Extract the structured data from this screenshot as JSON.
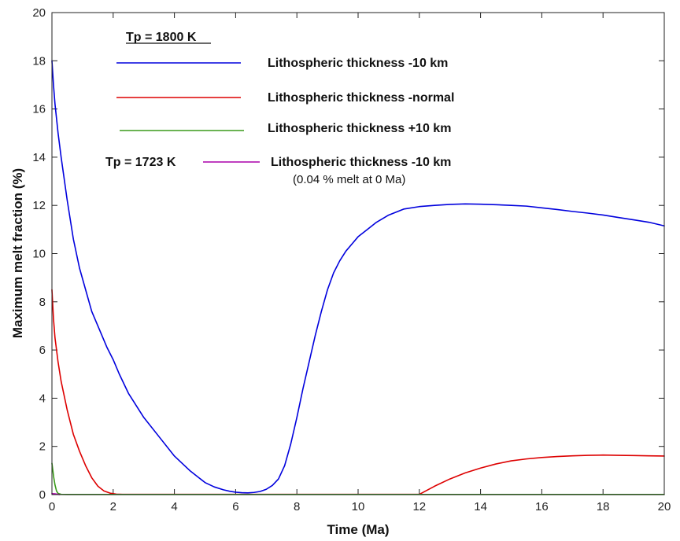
{
  "chart_data": {
    "type": "line",
    "xlabel": "Time (Ma)",
    "ylabel": "Maximum melt fraction (%)",
    "xlim": [
      0,
      20
    ],
    "ylim": [
      0,
      20
    ],
    "xticks": [
      "0",
      "2",
      "4",
      "6",
      "8",
      "10",
      "12",
      "14",
      "16",
      "18",
      "20"
    ],
    "yticks": [
      "0",
      "2",
      "4",
      "6",
      "8",
      "10",
      "12",
      "14",
      "16",
      "18",
      "20"
    ],
    "grid": false,
    "legend_placement": "top-left",
    "legend_group_titles": {
      "tp1800": "Tp = 1800 K",
      "tp1723": "Tp = 1723 K"
    },
    "legend_note": "(0.04 % melt at 0 Ma)",
    "series": [
      {
        "name": "Lithospheric thickness -10 km",
        "color": "#0000dd",
        "x": [
          0,
          0.05,
          0.1,
          0.2,
          0.3,
          0.5,
          0.7,
          0.9,
          1.1,
          1.3,
          1.5,
          1.8,
          2.0,
          2.2,
          2.5,
          2.8,
          3.0,
          3.5,
          4.0,
          4.5,
          5.0,
          5.3,
          5.6,
          5.8,
          6.0,
          6.2,
          6.4,
          6.6,
          6.8,
          7.0,
          7.2,
          7.4,
          7.6,
          7.8,
          8.0,
          8.2,
          8.4,
          8.6,
          8.8,
          9.0,
          9.2,
          9.4,
          9.6,
          9.8,
          10.0,
          10.3,
          10.6,
          11.0,
          11.5,
          12.0,
          12.5,
          13.0,
          13.5,
          14.0,
          14.5,
          15.0,
          15.5,
          16.0,
          16.5,
          17.0,
          17.5,
          18.0,
          18.5,
          19.0,
          19.5,
          20.0
        ],
        "y": [
          18.0,
          17.0,
          16.2,
          15.0,
          14.0,
          12.2,
          10.6,
          9.4,
          8.5,
          7.6,
          7.0,
          6.1,
          5.6,
          5.0,
          4.2,
          3.6,
          3.2,
          2.4,
          1.6,
          1.0,
          0.5,
          0.32,
          0.2,
          0.14,
          0.1,
          0.08,
          0.07,
          0.09,
          0.13,
          0.22,
          0.38,
          0.65,
          1.2,
          2.1,
          3.2,
          4.4,
          5.5,
          6.6,
          7.6,
          8.5,
          9.2,
          9.7,
          10.1,
          10.4,
          10.7,
          11.0,
          11.3,
          11.6,
          11.85,
          11.95,
          12.0,
          12.04,
          12.06,
          12.05,
          12.03,
          12.0,
          11.97,
          11.9,
          11.83,
          11.75,
          11.68,
          11.6,
          11.5,
          11.4,
          11.3,
          11.15
        ]
      },
      {
        "name": "Lithospheric thickness -normal",
        "color": "#dd0000",
        "x": [
          0,
          0.05,
          0.1,
          0.2,
          0.3,
          0.5,
          0.7,
          0.9,
          1.1,
          1.3,
          1.5,
          1.7,
          1.9,
          2.1,
          2.3,
          3,
          4,
          6,
          8,
          10,
          11,
          12,
          12.5,
          13,
          13.5,
          14,
          14.5,
          15,
          15.5,
          16,
          16.5,
          17,
          17.5,
          18,
          18.5,
          19,
          19.5,
          20
        ],
        "y": [
          8.5,
          7.3,
          6.5,
          5.5,
          4.7,
          3.5,
          2.5,
          1.8,
          1.2,
          0.7,
          0.35,
          0.15,
          0.06,
          0.02,
          0.01,
          0.01,
          0.01,
          0.01,
          0.01,
          0.01,
          0.01,
          0.01,
          0.35,
          0.65,
          0.9,
          1.1,
          1.27,
          1.4,
          1.48,
          1.54,
          1.58,
          1.61,
          1.63,
          1.64,
          1.63,
          1.62,
          1.61,
          1.6
        ]
      },
      {
        "name": "Lithospheric thickness +10 km",
        "color": "#3a9a1a",
        "x": [
          0,
          0.03,
          0.06,
          0.1,
          0.15,
          0.2,
          0.3,
          0.5,
          1,
          5,
          10,
          15,
          20
        ],
        "y": [
          1.3,
          1.0,
          0.7,
          0.4,
          0.15,
          0.05,
          0.01,
          0.005,
          0.005,
          0.005,
          0.005,
          0.005,
          0.005
        ]
      },
      {
        "name": "Lithospheric thickness -10 km",
        "color": "#aa00aa",
        "x": [
          0,
          0.1,
          0.2,
          0.25
        ],
        "y": [
          0.04,
          0.03,
          0.01,
          0.0
        ]
      }
    ]
  }
}
